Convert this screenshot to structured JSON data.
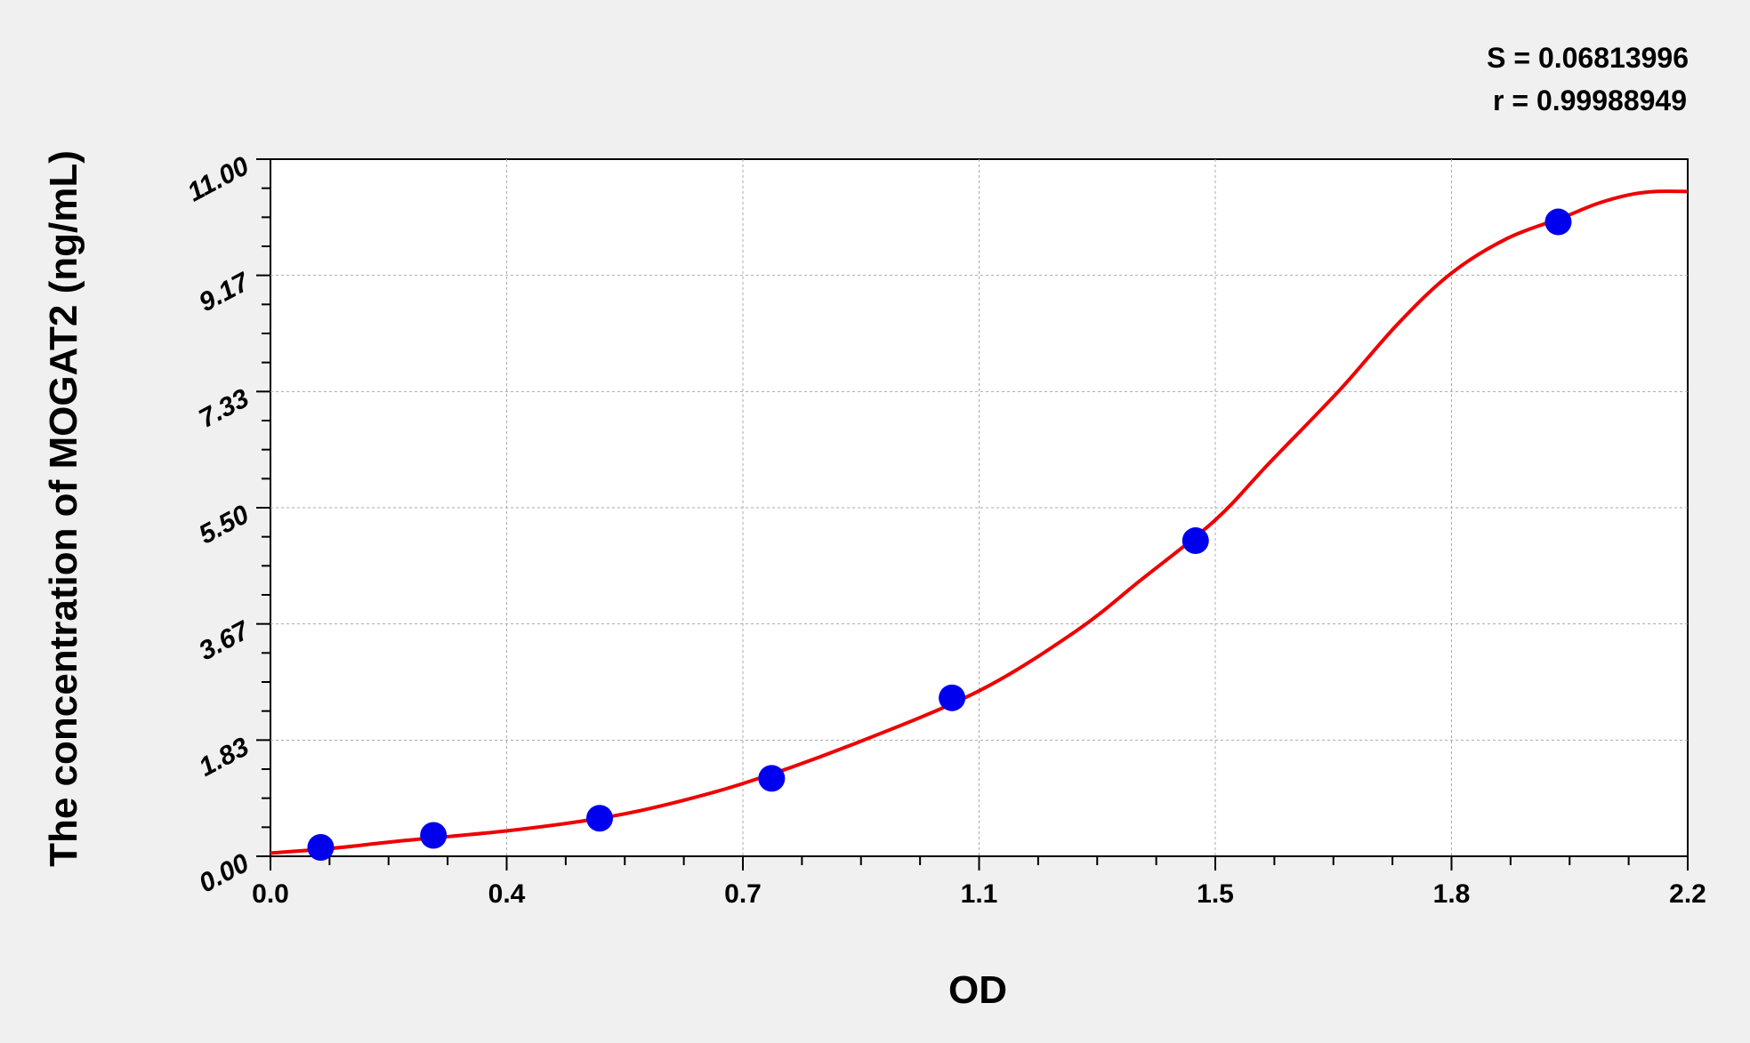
{
  "chart_data": {
    "type": "scatter",
    "xlabel": "OD",
    "ylabel": "The concentration of MOGAT2 (ng/mL)",
    "xlim": [
      0,
      2.2
    ],
    "ylim": [
      0,
      11
    ],
    "x_tick_labels": [
      "0.0",
      "0.4",
      "0.7",
      "1.1",
      "1.5",
      "1.8",
      "2.2"
    ],
    "y_tick_labels": [
      "0.00",
      "1.83",
      "3.67",
      "5.50",
      "7.33",
      "9.17",
      "11.00"
    ],
    "grid": true,
    "annotations": [
      "S = 0.06813996",
      "r = 0.99988949"
    ],
    "colors": {
      "points": "#0000ee",
      "curve": "#ee0000",
      "plot_bg": "#ffffff",
      "page_bg": "#f0f0f0"
    },
    "series": [
      {
        "kind": "points",
        "x": [
          0.078,
          0.253,
          0.511,
          0.778,
          1.058,
          1.436,
          1.999
        ],
        "y": [
          0.14,
          0.33,
          0.6,
          1.23,
          2.5,
          4.98,
          10.01
        ]
      },
      {
        "kind": "fitted-curve",
        "x": [
          0.0,
          0.1,
          0.2,
          0.366,
          0.5,
          0.6,
          0.731,
          0.9,
          1.098,
          1.25,
          1.35,
          1.466,
          1.55,
          1.66,
          1.75,
          1.833,
          1.92,
          2.006,
          2.06,
          2.11,
          2.15,
          2.2
        ],
        "y": [
          0.05,
          0.13,
          0.24,
          0.4,
          0.58,
          0.78,
          1.14,
          1.75,
          2.6,
          3.55,
          4.35,
          5.3,
          6.2,
          7.36,
          8.4,
          9.2,
          9.75,
          10.08,
          10.3,
          10.44,
          10.49,
          10.49
        ]
      }
    ]
  }
}
